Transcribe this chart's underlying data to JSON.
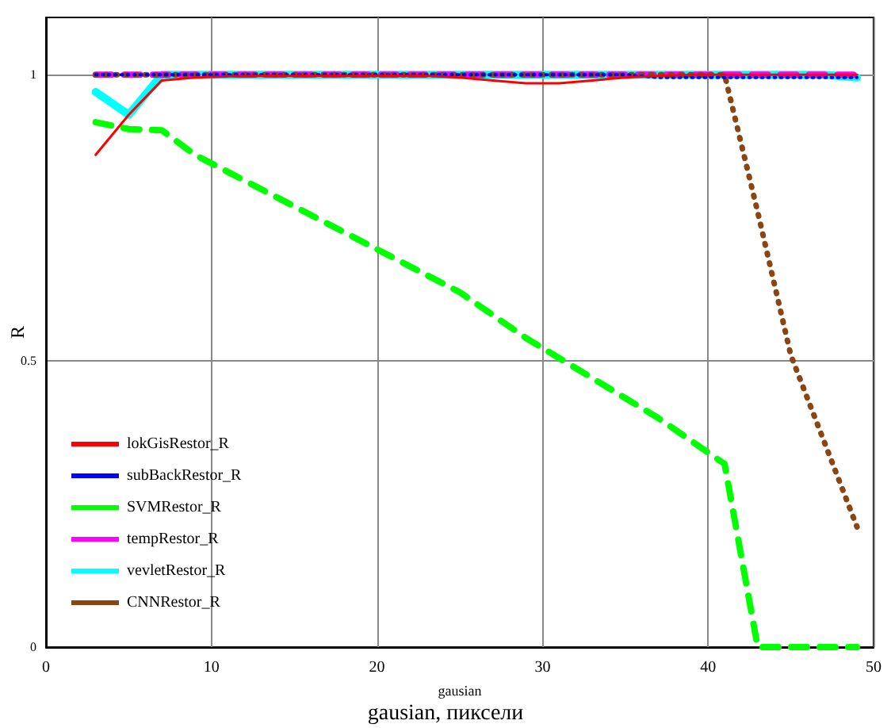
{
  "chart_data": {
    "type": "line",
    "xlabel": "gausian",
    "ylabel": "R",
    "annotations": [
      "gausian, пиксели"
    ],
    "x": [
      3,
      5,
      7,
      9,
      11,
      13,
      15,
      17,
      19,
      21,
      23,
      25,
      27,
      29,
      31,
      33,
      35,
      37,
      39,
      41,
      43,
      45,
      47,
      49
    ],
    "xlim": [
      0,
      50
    ],
    "xticks": [
      0,
      10,
      20,
      30,
      40,
      50
    ],
    "ylim": [
      0,
      1.1
    ],
    "yticks": [
      0,
      0.5,
      1
    ],
    "grid": true,
    "legend": "left",
    "marker": "none",
    "series": [
      {
        "name": "lokGisRestor_R",
        "color": "#ff0000",
        "line_style": "solid",
        "values": [
          0.86,
          0.93,
          0.99,
          0.995,
          0.997,
          0.998,
          0.998,
          0.998,
          0.998,
          0.998,
          0.998,
          0.995,
          0.99,
          0.985,
          0.985,
          0.99,
          0.995,
          0.998,
          1.0,
          1.0,
          1.0,
          1.0,
          1.0,
          1.0
        ]
      },
      {
        "name": "subBackRestor_R",
        "color": "#0000ff",
        "line_style": "dotted",
        "values": [
          1.0,
          1.0,
          1.0,
          1.0,
          1.0,
          1.0,
          1.0,
          1.0,
          1.0,
          1.0,
          1.0,
          1.0,
          1.0,
          1.0,
          1.0,
          1.0,
          1.0,
          0.995,
          0.995,
          0.995,
          0.995,
          0.995,
          0.995,
          0.995
        ]
      },
      {
        "name": "SVMRestor_R",
        "color": "#00ff00",
        "line_style": "dashed",
        "values": [
          0.917,
          0.905,
          0.903,
          0.86,
          0.83,
          0.8,
          0.77,
          0.74,
          0.71,
          0.68,
          0.65,
          0.62,
          0.58,
          0.54,
          0.505,
          0.47,
          0.435,
          0.4,
          0.36,
          0.32,
          0,
          0,
          0,
          0
        ]
      },
      {
        "name": "tempRestor_R",
        "color": "#ff00ff",
        "line_style": "dashed",
        "values": [
          1.0,
          1.0,
          1.0,
          1.0,
          1.0,
          1.0,
          1.0,
          1.0,
          1.0,
          1.0,
          1.0,
          1.0,
          1.0,
          1.0,
          1.0,
          1.0,
          1.0,
          1.0,
          1.0,
          1.0,
          1.0,
          1.0,
          1.0,
          1.0
        ]
      },
      {
        "name": "vevletRestor_R",
        "color": "#00ffff",
        "line_style": "solid",
        "values": [
          0.97,
          0.93,
          1.0,
          1.0,
          1.0,
          1.0,
          1.0,
          1.0,
          1.0,
          1.0,
          1.0,
          1.0,
          1.0,
          1.0,
          1.0,
          1.0,
          1.0,
          1.0,
          1.0,
          1.0,
          1.0,
          1.0,
          1.0,
          0.995
        ]
      },
      {
        "name": "CNNRestor_R",
        "color": "#8b4513",
        "line_style": "dotted",
        "values": [
          1.0,
          1.0,
          1.0,
          1.0,
          1.0,
          1.0,
          1.0,
          1.0,
          1.0,
          1.0,
          1.0,
          1.0,
          1.0,
          1.0,
          1.0,
          1.0,
          1.0,
          1.0,
          1.0,
          1.0,
          0.76,
          0.51,
          0.36,
          0.21
        ]
      }
    ]
  }
}
